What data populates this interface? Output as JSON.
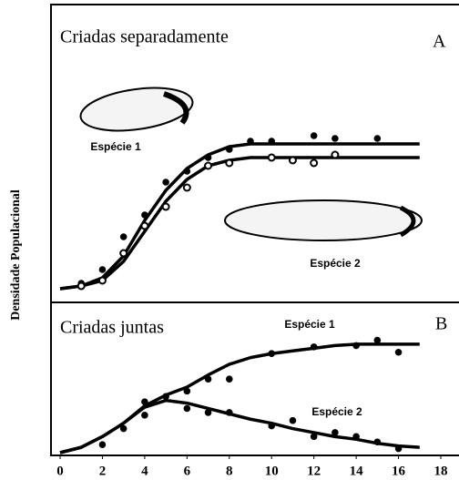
{
  "chart_data": [
    {
      "type": "line",
      "title": "Criadas separadamente",
      "panel_label": "A",
      "ylabel": "Densidade Populacional",
      "xlim": [
        0,
        18
      ],
      "ylim": [
        0,
        100
      ],
      "series": [
        {
          "name": "Espécie 1",
          "color": "#000000",
          "marker": "filled",
          "x": [
            0,
            1,
            2,
            3,
            4,
            5,
            6,
            7,
            8,
            9,
            10,
            11,
            12,
            13,
            14,
            15,
            16,
            17
          ],
          "values": [
            1,
            2,
            5,
            13,
            26,
            37,
            45,
            50,
            53,
            54,
            54,
            54,
            54,
            54,
            54,
            54,
            54,
            54
          ],
          "points_x": [
            1,
            2,
            3,
            4,
            5,
            6,
            7,
            8,
            9,
            10,
            12,
            13,
            15
          ],
          "points": [
            3,
            8,
            20,
            28,
            40,
            44,
            49,
            52,
            55,
            55,
            57,
            56,
            56
          ]
        },
        {
          "name": "Espécie 2",
          "color": "#000000",
          "marker": "open",
          "x": [
            0,
            1,
            2,
            3,
            4,
            5,
            6,
            7,
            8,
            9,
            10,
            11,
            12,
            13,
            14,
            15,
            16,
            17
          ],
          "values": [
            1,
            2,
            4,
            11,
            22,
            33,
            41,
            46,
            48,
            49,
            49,
            49,
            49,
            49,
            49,
            49,
            49,
            49
          ],
          "points_x": [
            1,
            2,
            3,
            4,
            5,
            6,
            7,
            8,
            10,
            11,
            12,
            13
          ],
          "points": [
            2,
            4,
            14,
            24,
            31,
            38,
            46,
            47,
            49,
            48,
            47,
            50
          ]
        }
      ]
    },
    {
      "type": "line",
      "title": "Criadas juntas",
      "panel_label": "B",
      "xlim": [
        0,
        18
      ],
      "ylim": [
        0,
        100
      ],
      "xticks": [
        0,
        2,
        4,
        6,
        8,
        10,
        12,
        14,
        16,
        18
      ],
      "series": [
        {
          "name": "Espécie 1",
          "color": "#000000",
          "marker": "filled",
          "x": [
            0,
            1,
            2,
            3,
            4,
            5,
            6,
            7,
            8,
            9,
            10,
            11,
            12,
            13,
            14,
            15,
            16,
            17
          ],
          "values": [
            0,
            4,
            12,
            22,
            35,
            43,
            49,
            58,
            66,
            71,
            74,
            76,
            78,
            80,
            81,
            81,
            81,
            81
          ],
          "points_x": [
            4,
            5,
            6,
            7,
            8,
            10,
            12,
            14,
            15,
            16
          ],
          "points": [
            38,
            42,
            46,
            55,
            55,
            74,
            79,
            80,
            84,
            75
          ]
        },
        {
          "name": "Espécie 2",
          "color": "#000000",
          "marker": "filled",
          "x": [
            0,
            1,
            2,
            3,
            4,
            5,
            6,
            7,
            8,
            9,
            10,
            11,
            12,
            13,
            14,
            15,
            16,
            17
          ],
          "values": [
            0,
            4,
            12,
            22,
            34,
            39,
            37,
            33,
            29,
            25,
            22,
            18,
            15,
            12,
            10,
            7,
            5,
            4
          ],
          "points_x": [
            2,
            3,
            4,
            6,
            7,
            8,
            10,
            11,
            12,
            13,
            14,
            15,
            16
          ],
          "points": [
            6,
            18,
            28,
            33,
            30,
            30,
            20,
            24,
            12,
            15,
            12,
            8,
            3
          ]
        }
      ]
    }
  ]
}
